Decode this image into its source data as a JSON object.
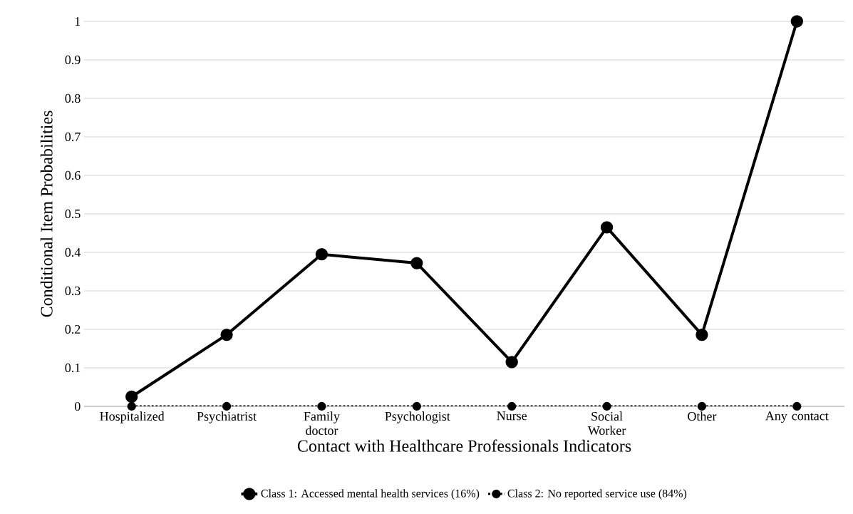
{
  "chart_data": {
    "type": "line",
    "xlabel": "Contact with Healthcare Professionals Indicators",
    "ylabel": "Conditional Item Probabilities",
    "categories": [
      "Hospitalized",
      "Psychiatrist",
      "Family doctor",
      "Psychologist",
      "Nurse",
      "Social Worker",
      "Other",
      "Any contact"
    ],
    "series": [
      {
        "name": "Class 1: Accessed mental health services (16%)",
        "color": "#000000",
        "line_style": "solid",
        "values": [
          0.025,
          0.186,
          0.395,
          0.372,
          0.115,
          0.465,
          0.186,
          1.0
        ]
      },
      {
        "name": "Class 2: No reported service use (84%)",
        "color": "#000000",
        "line_style": "dotted",
        "values": [
          0,
          0,
          0,
          0,
          0,
          0,
          0,
          0
        ]
      }
    ],
    "marker": "circle",
    "ylim": [
      0,
      1
    ],
    "yticks": [
      0,
      0.1,
      0.2,
      0.3,
      0.4,
      0.5,
      0.6,
      0.7,
      0.8,
      0.9,
      1
    ],
    "grid": "y",
    "legend": "bottom"
  }
}
